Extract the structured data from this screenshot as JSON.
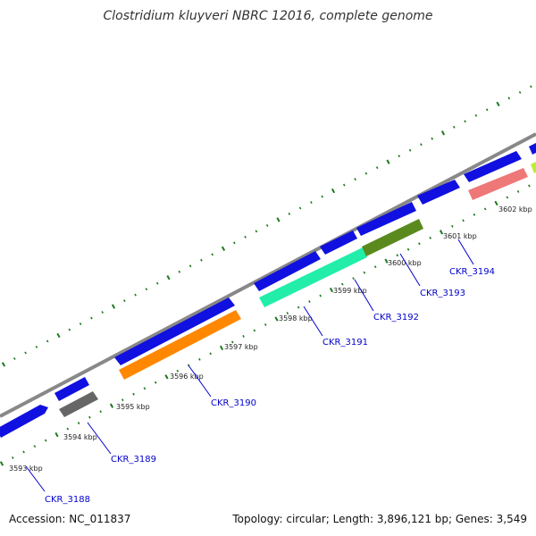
{
  "title": "Clostridium kluyveri NBRC 12016, complete genome",
  "footer": {
    "accession": "Accession: NC_011837",
    "summary": "Topology: circular; Length: 3,896,121 bp; Genes: 3,549"
  },
  "colors": {
    "backbone": "#888888",
    "tick": "#1a7a1a",
    "forward_gene": "#1010e0",
    "label": "#0000cc"
  },
  "kbp_ticks": [
    "3593 kbp",
    "3594 kbp",
    "3595 kbp",
    "3596 kbp",
    "3597 kbp",
    "3598 kbp",
    "3599 kbp",
    "3600 kbp",
    "3601 kbp",
    "3602 kbp"
  ],
  "genes": [
    {
      "label": "CKR_3188",
      "color": "#1010e0",
      "strand": "forward"
    },
    {
      "label": "CKR_3189",
      "color": "#666666",
      "strand": "reverse"
    },
    {
      "label": "CKR_3190",
      "color": "#ff8800",
      "strand": "reverse"
    },
    {
      "label": "CKR_3191",
      "color": "#22eeaa",
      "strand": "reverse"
    },
    {
      "label": "CKR_3192",
      "color": "#5a8a1e",
      "strand": "reverse"
    },
    {
      "label": "CKR_3193",
      "color": "#1010e0",
      "strand": "forward"
    },
    {
      "label": "CKR_3194",
      "color": "#ee7777",
      "strand": "reverse"
    }
  ]
}
